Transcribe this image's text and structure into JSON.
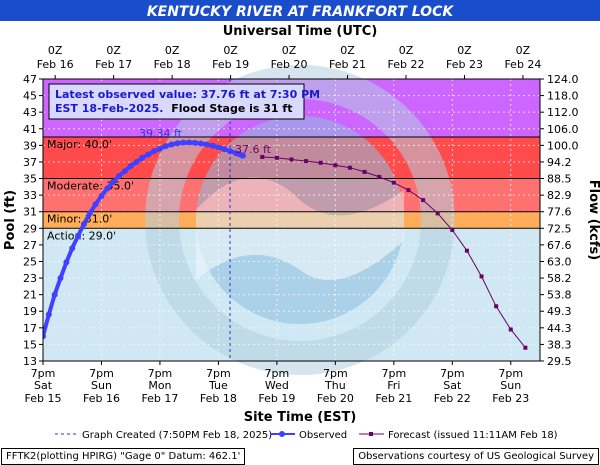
{
  "title": "KENTUCKY RIVER AT FRANKFORT LOCK",
  "top_axis_label": "Universal Time (UTC)",
  "bottom_axis_label": "Site Time (EST)",
  "left_axis_label": "Pool (ft)",
  "right_axis_label": "Flow (kcfs)",
  "colors": {
    "title_bg": "#1a4dcc",
    "plot_bg": "#cfe8f3",
    "major": "#ff4b4b",
    "moderate": "#ff7070",
    "minor": "#ffad5a",
    "action": "#ffff66",
    "record": "#cc66ff",
    "observed": "#4040ff",
    "forecast": "#6b0066"
  },
  "callout": {
    "line1": "Latest observed value: 37.76 ft at 7:30 PM",
    "line2_a": "EST 18-Feb-2025.",
    "line2_b": "Flood Stage is 31 ft"
  },
  "legend": {
    "graph_created": "Graph Created (7:50PM Feb 18, 2025)",
    "observed": "Observed",
    "forecast": "Forecast (issued 11:11AM Feb 18)"
  },
  "footer": {
    "left": "FFTK2(plotting HPIRG) \"Gage 0\" Datum: 462.1'",
    "right": "Observations courtesy of US Geological Survey"
  },
  "chart_data": {
    "type": "line",
    "title": "KENTUCKY RIVER AT FRANKFORT LOCK",
    "ylabel": "Pool (ft)",
    "y2label": "Flow (kcfs)",
    "xlabel": "Site Time (EST)",
    "x2label": "Universal Time (UTC)",
    "ylim": [
      13,
      47
    ],
    "yticks": [
      "13",
      "15",
      "17",
      "19",
      "21",
      "23",
      "25",
      "27",
      "29",
      "31",
      "33",
      "35",
      "37",
      "39",
      "41",
      "43",
      "45",
      "47"
    ],
    "y2ticks": [
      "29.5",
      "38.3",
      "44.3",
      "49.3",
      "53.8",
      "58.2",
      "63.0",
      "67.6",
      "72.5",
      "77.6",
      "82.9",
      "88.5",
      "94.2",
      "100.0",
      "106.0",
      "112.0",
      "118.0",
      "124.0"
    ],
    "x_bottom_ticks": [
      {
        "t1": "7pm",
        "t2": "Sat",
        "t3": "Feb 15"
      },
      {
        "t1": "7pm",
        "t2": "Sun",
        "t3": "Feb 16"
      },
      {
        "t1": "7pm",
        "t2": "Mon",
        "t3": "Feb 17"
      },
      {
        "t1": "7pm",
        "t2": "Tue",
        "t3": "Feb 18"
      },
      {
        "t1": "7pm",
        "t2": "Wed",
        "t3": "Feb 19"
      },
      {
        "t1": "7pm",
        "t2": "Thu",
        "t3": "Feb 20"
      },
      {
        "t1": "7pm",
        "t2": "Fri",
        "t3": "Feb 21"
      },
      {
        "t1": "7pm",
        "t2": "Sat",
        "t3": "Feb 22"
      },
      {
        "t1": "7pm",
        "t2": "Sun",
        "t3": "Feb 23"
      }
    ],
    "x_top_ticks": [
      {
        "t1": "0Z",
        "t2": "Feb 16"
      },
      {
        "t1": "0Z",
        "t2": "Feb 17"
      },
      {
        "t1": "0Z",
        "t2": "Feb 18"
      },
      {
        "t1": "0Z",
        "t2": "Feb 19"
      },
      {
        "t1": "0Z",
        "t2": "Feb 20"
      },
      {
        "t1": "0Z",
        "t2": "Feb 21"
      },
      {
        "t1": "0Z",
        "t2": "Feb 22"
      },
      {
        "t1": "0Z",
        "t2": "Feb 23"
      },
      {
        "t1": "0Z",
        "t2": "Feb 24"
      }
    ],
    "flood_categories": [
      {
        "name": "Action",
        "label": "Action: 29.0'",
        "stage": 29.0
      },
      {
        "name": "Minor",
        "label": "Minor: 31.0'",
        "stage": 31.0
      },
      {
        "name": "Moderate",
        "label": "Moderate: 35.0'",
        "stage": 35.0
      },
      {
        "name": "Major",
        "label": "Major: 40.0'",
        "stage": 40.0
      }
    ],
    "x_unit": "days after 7pm EST Feb 15",
    "series": [
      {
        "name": "Observed",
        "points": [
          [
            0.0,
            16.0
          ],
          [
            0.1,
            18.6
          ],
          [
            0.2,
            21.0
          ],
          [
            0.3,
            23.0
          ],
          [
            0.4,
            24.9
          ],
          [
            0.5,
            26.6
          ],
          [
            0.6,
            28.1
          ],
          [
            0.7,
            29.5
          ],
          [
            0.8,
            30.8
          ],
          [
            0.9,
            31.9
          ],
          [
            1.0,
            32.9
          ],
          [
            1.1,
            33.8
          ],
          [
            1.2,
            34.6
          ],
          [
            1.3,
            35.3
          ],
          [
            1.4,
            35.9
          ],
          [
            1.5,
            36.5
          ],
          [
            1.6,
            37.0
          ],
          [
            1.7,
            37.5
          ],
          [
            1.8,
            37.9
          ],
          [
            1.9,
            38.3
          ],
          [
            2.0,
            38.6
          ],
          [
            2.1,
            38.9
          ],
          [
            2.2,
            39.1
          ],
          [
            2.3,
            39.25
          ],
          [
            2.4,
            39.33
          ],
          [
            2.5,
            39.34
          ],
          [
            2.6,
            39.3
          ],
          [
            2.7,
            39.22
          ],
          [
            2.8,
            39.1
          ],
          [
            2.9,
            38.95
          ],
          [
            3.0,
            38.76
          ],
          [
            3.1,
            38.55
          ],
          [
            3.2,
            38.3
          ],
          [
            3.3,
            38.06
          ],
          [
            3.35,
            37.95
          ],
          [
            3.4,
            37.8
          ],
          [
            3.42,
            37.76
          ]
        ]
      },
      {
        "name": "Forecast",
        "points": [
          [
            3.75,
            37.6
          ],
          [
            4.0,
            37.5
          ],
          [
            4.25,
            37.3
          ],
          [
            4.5,
            37.1
          ],
          [
            4.75,
            36.9
          ],
          [
            5.0,
            36.6
          ],
          [
            5.25,
            36.3
          ],
          [
            5.5,
            35.8
          ],
          [
            5.75,
            35.2
          ],
          [
            6.0,
            34.5
          ],
          [
            6.25,
            33.6
          ],
          [
            6.5,
            32.4
          ],
          [
            6.75,
            30.8
          ],
          [
            7.0,
            28.8
          ],
          [
            7.25,
            26.3
          ],
          [
            7.5,
            23.2
          ],
          [
            7.75,
            19.6
          ],
          [
            8.0,
            16.8
          ],
          [
            8.25,
            14.6
          ]
        ]
      }
    ],
    "annotations": [
      {
        "text": "39.34 ft",
        "x": 2.5,
        "y": 39.34
      },
      {
        "text": "37.6 ft",
        "x": 3.75,
        "y": 37.6
      }
    ]
  }
}
